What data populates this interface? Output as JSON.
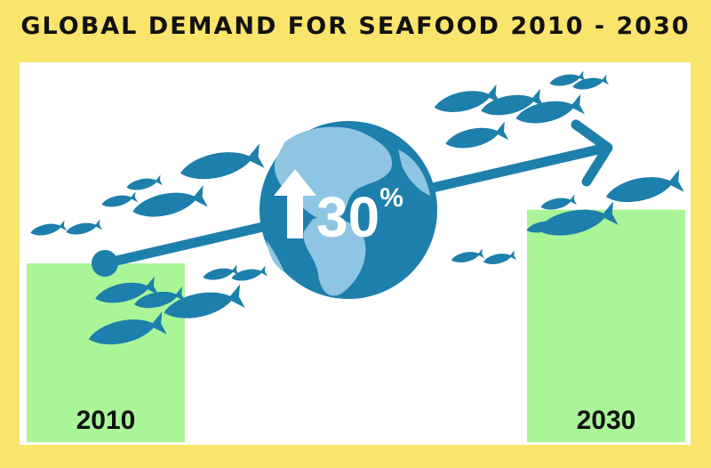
{
  "title": "GLOBAL DEMAND FOR SEAFOOD 2010 - 2030",
  "change_label": "30%",
  "colors": {
    "background": "#f9e46c",
    "panel": "#ffffff",
    "bar": "#aaf598",
    "accent": "#1d7fab",
    "globe_ocean": "#1d7fab",
    "globe_land": "#8ec5e2"
  },
  "icons": [
    "fish-icon",
    "globe-icon",
    "up-arrow-icon",
    "trend-arrow-icon"
  ],
  "chart_data": {
    "type": "bar",
    "categories": [
      "2010",
      "2030"
    ],
    "values": [
      100,
      130
    ],
    "change_percent": 30,
    "title": "GLOBAL DEMAND FOR SEAFOOD 2010 - 2030",
    "xlabel": "",
    "ylabel": "",
    "grid": false,
    "legend": "none"
  }
}
